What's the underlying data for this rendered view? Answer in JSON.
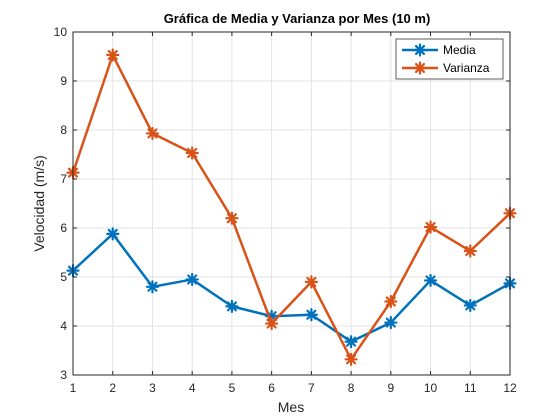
{
  "chart_data": {
    "type": "line",
    "title": "Gráfica de Media y Varianza por Mes (10 m)",
    "xlabel": "Mes",
    "ylabel": "Velocidad (m/s)",
    "x": [
      1,
      2,
      3,
      4,
      5,
      6,
      7,
      8,
      9,
      10,
      11,
      12
    ],
    "xlim": [
      1,
      12
    ],
    "ylim": [
      3,
      10
    ],
    "xticks": [
      "1",
      "2",
      "3",
      "4",
      "5",
      "6",
      "7",
      "8",
      "9",
      "10",
      "11",
      "12"
    ],
    "yticks": [
      "3",
      "4",
      "5",
      "6",
      "7",
      "8",
      "9",
      "10"
    ],
    "grid": true,
    "legend_position": "top-right",
    "series": [
      {
        "name": "Media",
        "color": "#0072BD",
        "marker": "asterisk",
        "values": [
          5.13,
          5.88,
          4.8,
          4.95,
          4.4,
          4.2,
          4.23,
          3.68,
          4.07,
          4.93,
          4.42,
          4.87
        ]
      },
      {
        "name": "Varianza",
        "color": "#D95319",
        "marker": "asterisk",
        "values": [
          7.13,
          9.53,
          7.93,
          7.53,
          6.2,
          4.05,
          4.9,
          3.32,
          4.5,
          6.02,
          5.53,
          6.3
        ]
      }
    ]
  }
}
